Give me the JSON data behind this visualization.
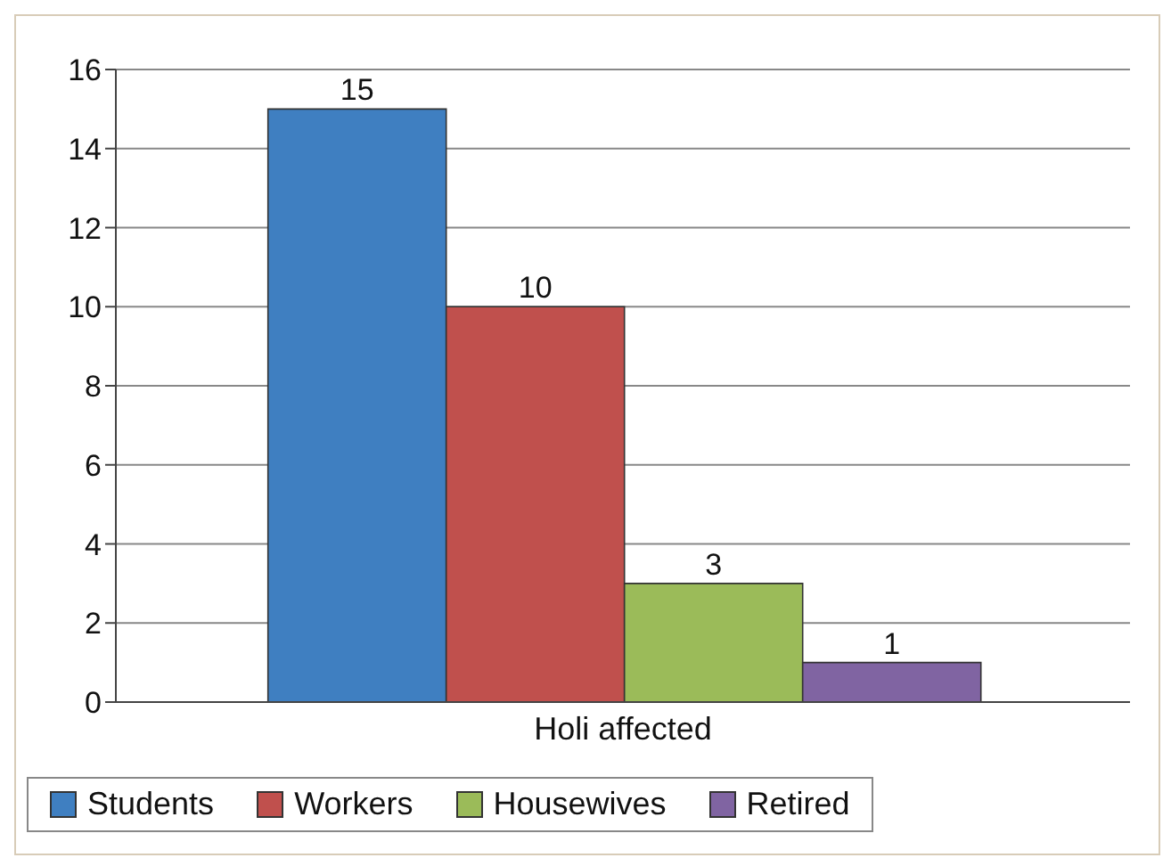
{
  "chart_data": {
    "type": "bar",
    "categories": [
      "Holi affected"
    ],
    "series": [
      {
        "name": "Students",
        "color": "#3f7fc1",
        "values": [
          15
        ]
      },
      {
        "name": "Workers",
        "color": "#c0504d",
        "values": [
          10
        ]
      },
      {
        "name": "Housewives",
        "color": "#9bbb59",
        "values": [
          3
        ]
      },
      {
        "name": "Retired",
        "color": "#8064a2",
        "values": [
          1
        ]
      }
    ],
    "ylim": [
      0,
      16
    ],
    "yticks": [
      0,
      2,
      4,
      6,
      8,
      10,
      12,
      14,
      16
    ],
    "grid": "y",
    "legend": "bottom",
    "data_labels": true
  }
}
